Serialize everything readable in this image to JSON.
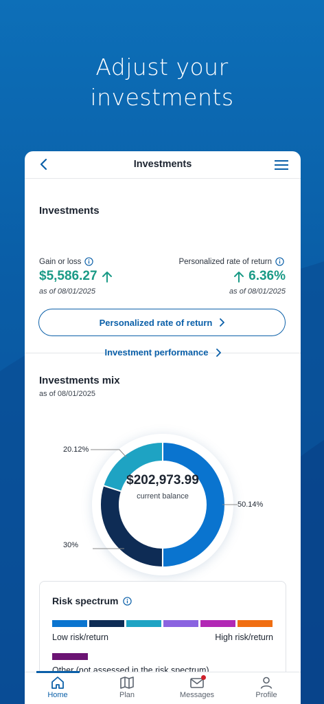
{
  "hero": {
    "line1": "Adjust your",
    "line2": "investments"
  },
  "colors": {
    "accent": "#0a5fa8",
    "positive": "#1a9a86"
  },
  "topbar": {
    "title": "Investments",
    "back_icon": "chevron-left-icon",
    "menu_icon": "hamburger-menu-icon"
  },
  "summary": {
    "title": "Investments",
    "gain_label": "Gain or loss",
    "gain_value": "$5,586.27",
    "gain_as_of": "as of 08/01/2025",
    "return_label": "Personalized rate of return",
    "return_value": "6.36%",
    "return_as_of": "as of 08/01/2025",
    "return_button": "Personalized rate of return",
    "performance_link": "Investment performance"
  },
  "mix": {
    "title": "Investments mix",
    "as_of": "as of 08/01/2025",
    "center_value": "$202,973.99",
    "center_label": "current balance",
    "labels": {
      "blue": "50.14%",
      "navy": "30%",
      "teal": "20.12%"
    }
  },
  "chart_data": {
    "type": "pie",
    "title": "Investments mix",
    "categories": [
      "50.14%",
      "30%",
      "20.12%"
    ],
    "values": [
      50.14,
      30,
      20.12
    ],
    "colors": [
      "#0a74cf",
      "#0e2c55",
      "#1ea3c3"
    ],
    "center_text": "$202,973.99"
  },
  "risk": {
    "title": "Risk spectrum",
    "low_label": "Low risk/return",
    "high_label": "High risk/return",
    "other_label": "Other (not assessed in the risk spectrum)",
    "bar_colors": [
      "#0a74cf",
      "#0e2c55",
      "#1ea3c3",
      "#8a63e0",
      "#b228b5",
      "#f06e12"
    ],
    "other_color": "#6b1473"
  },
  "tabs": [
    {
      "label": "Home",
      "icon": "home-icon"
    },
    {
      "label": "Plan",
      "icon": "map-icon"
    },
    {
      "label": "Messages",
      "icon": "mail-icon"
    },
    {
      "label": "Profile",
      "icon": "user-icon"
    }
  ]
}
